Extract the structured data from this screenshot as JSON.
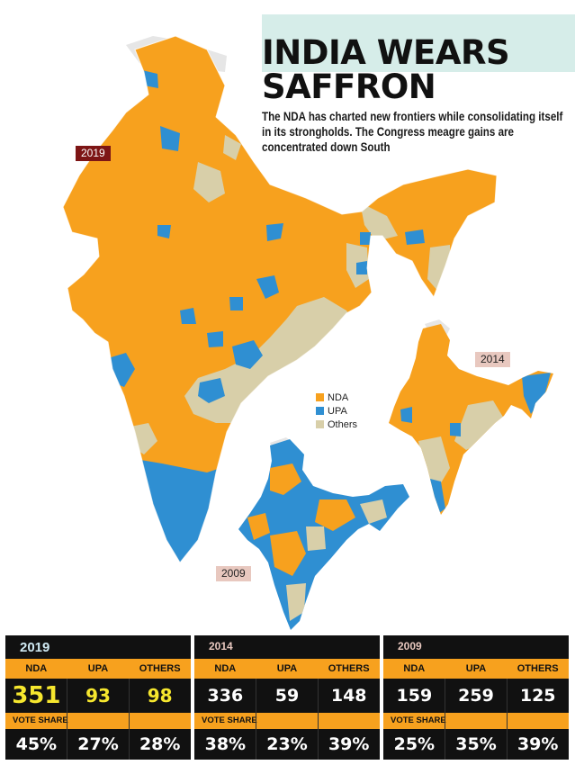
{
  "header": {
    "title": "INDIA WEARS SAFFRON",
    "subtitle": "The NDA has charted new frontiers while consolidating itself in its strongholds. The Congress meagre gains are concentrated down South"
  },
  "legend": {
    "items": [
      {
        "label": "NDA",
        "color": "#f7a11e"
      },
      {
        "label": "UPA",
        "color": "#2f8fd2"
      },
      {
        "label": "Others",
        "color": "#d8cfa9"
      }
    ]
  },
  "maps": {
    "main_tag": "2019",
    "mid_tag": "2014",
    "small_tag": "2009"
  },
  "colors": {
    "nda": "#f7a11e",
    "upa": "#2f8fd2",
    "others": "#d8cfa9",
    "disputed": "#e6e6e6",
    "panel_bg": "#111111",
    "highlight_2019": "#f6e72e"
  },
  "results": [
    {
      "year": "2019",
      "headers": [
        "NDA",
        "UPA",
        "OTHERS"
      ],
      "seats": [
        "351",
        "93",
        "98"
      ],
      "vote_share_label": "VOTE SHARE",
      "vote_share": [
        "45%",
        "27%",
        "28%"
      ]
    },
    {
      "year": "2014",
      "headers": [
        "NDA",
        "UPA",
        "OTHERS"
      ],
      "seats": [
        "336",
        "59",
        "148"
      ],
      "vote_share_label": "VOTE SHARE",
      "vote_share": [
        "38%",
        "23%",
        "39%"
      ]
    },
    {
      "year": "2009",
      "headers": [
        "NDA",
        "UPA",
        "OTHERS"
      ],
      "seats": [
        "159",
        "259",
        "125"
      ],
      "vote_share_label": "VOTE SHARE",
      "vote_share": [
        "25%",
        "35%",
        "39%"
      ]
    }
  ]
}
